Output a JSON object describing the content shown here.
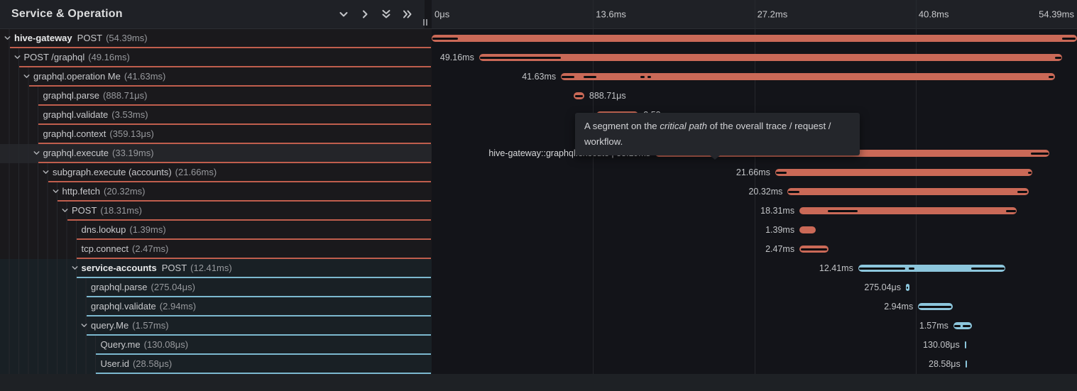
{
  "header": {
    "title": "Service & Operation",
    "icons": [
      "chevron-down",
      "chevron-right",
      "double-chevron-down",
      "double-chevron-right",
      "resize-grip"
    ]
  },
  "timeline": {
    "total_ms": 54.39,
    "ticks": [
      {
        "label": "0μs",
        "ms": 0,
        "align": "left"
      },
      {
        "label": "13.6ms",
        "ms": 13.6,
        "align": "left"
      },
      {
        "label": "27.2ms",
        "ms": 27.2,
        "align": "left"
      },
      {
        "label": "40.8ms",
        "ms": 40.8,
        "align": "left"
      },
      {
        "label": "54.39ms",
        "ms": 54.39,
        "align": "right"
      }
    ]
  },
  "colors": {
    "salmon": "#ca6957",
    "salmon_border": "#c05e4d",
    "blue": "#8cc6dc",
    "blue_border": "#7cb8cf",
    "critical": "#0c0d10",
    "salmon_row_bg": "#1a191c",
    "blue_row_bg": "#192025",
    "hover_row_bg": "#242529"
  },
  "tooltip": {
    "prefix": "A segment on the ",
    "italic": "critical path",
    "suffix": " of the overall trace / request / workflow."
  },
  "rows": [
    {
      "depth": 0,
      "chevron": true,
      "service": "hive-gateway",
      "name": "POST /graphql",
      "tree_name": "POST",
      "duration": "54.39ms",
      "color": "salmon",
      "hovered": false,
      "bar": {
        "start_ms": 0,
        "duration_ms": 54.39,
        "label": "",
        "label_side": "none"
      },
      "critical": [
        [
          0.05,
          2.2
        ],
        [
          53.15,
          54.3
        ]
      ]
    },
    {
      "depth": 1,
      "chevron": true,
      "service": "",
      "name": "POST /graphql",
      "tree_name": "POST /graphql",
      "duration": "49.16ms",
      "color": "salmon",
      "hovered": false,
      "bar": {
        "start_ms": 4.0,
        "duration_ms": 49.16,
        "label": "49.16ms",
        "label_side": "left"
      },
      "critical": [
        [
          4.05,
          10.9
        ],
        [
          52.55,
          53.1
        ]
      ]
    },
    {
      "depth": 2,
      "chevron": true,
      "service": "",
      "name": "graphql.operation Me",
      "tree_name": "graphql.operation Me",
      "duration": "41.63ms",
      "color": "salmon",
      "hovered": false,
      "bar": {
        "start_ms": 10.9,
        "duration_ms": 41.63,
        "label": "41.63ms",
        "label_side": "left"
      },
      "critical": [
        [
          10.95,
          12.05
        ],
        [
          12.8,
          13.9
        ],
        [
          17.6,
          17.95
        ],
        [
          18.2,
          18.5
        ],
        [
          52.0,
          52.4
        ]
      ]
    },
    {
      "depth": 3,
      "chevron": false,
      "service": "",
      "name": "graphql.parse",
      "tree_name": "graphql.parse",
      "duration": "888.71μs",
      "color": "salmon",
      "hovered": false,
      "bar": {
        "start_ms": 11.97,
        "duration_ms": 0.889,
        "label": "888.71μs",
        "label_side": "right"
      },
      "critical": [
        [
          12.1,
          12.75
        ]
      ]
    },
    {
      "depth": 3,
      "chevron": false,
      "service": "",
      "name": "graphql.validate",
      "tree_name": "graphql.validate",
      "duration": "3.53ms",
      "color": "salmon",
      "hovered": false,
      "bar": {
        "start_ms": 13.9,
        "duration_ms": 3.53,
        "label": "3.53ms",
        "label_side": "right"
      },
      "critical": [
        [
          14.2,
          17.3
        ]
      ]
    },
    {
      "depth": 3,
      "chevron": false,
      "service": "",
      "name": "graphql.context",
      "tree_name": "graphql.context",
      "duration": "359.13μs",
      "color": "salmon",
      "hovered": false,
      "bar": {
        "start_ms": 17.5,
        "duration_ms": 0.359,
        "label": "359.13μs",
        "label_side": "right"
      },
      "critical": []
    },
    {
      "depth": 3,
      "chevron": true,
      "service": "",
      "name": "graphql.execute",
      "tree_name": "graphql.execute",
      "duration": "33.19ms",
      "color": "salmon",
      "hovered": true,
      "bar": {
        "start_ms": 18.85,
        "duration_ms": 33.19,
        "label": "hive-gateway::graphql.execute | 33.19ms",
        "label_side": "left"
      },
      "critical": [
        [
          18.9,
          28.8
        ],
        [
          50.5,
          52.0
        ]
      ]
    },
    {
      "depth": 4,
      "chevron": true,
      "service": "",
      "name": "subgraph.execute (accounts)",
      "tree_name": "subgraph.execute (accounts)",
      "duration": "21.66ms",
      "color": "salmon",
      "hovered": false,
      "bar": {
        "start_ms": 28.95,
        "duration_ms": 21.66,
        "label": "21.66ms",
        "label_side": "left"
      },
      "critical": [
        [
          29.0,
          29.9
        ],
        [
          50.25,
          50.55
        ]
      ]
    },
    {
      "depth": 5,
      "chevron": true,
      "service": "",
      "name": "http.fetch",
      "tree_name": "http.fetch",
      "duration": "20.32ms",
      "color": "salmon",
      "hovered": false,
      "bar": {
        "start_ms": 30.0,
        "duration_ms": 20.32,
        "label": "20.32ms",
        "label_side": "left"
      },
      "critical": [
        [
          30.05,
          31.0
        ],
        [
          49.35,
          50.2
        ]
      ]
    },
    {
      "depth": 6,
      "chevron": true,
      "service": "",
      "name": "POST",
      "tree_name": "POST",
      "duration": "18.31ms",
      "color": "salmon",
      "hovered": false,
      "bar": {
        "start_ms": 31.0,
        "duration_ms": 18.31,
        "label": "18.31ms",
        "label_side": "left"
      },
      "critical": [
        [
          33.4,
          35.9
        ],
        [
          48.4,
          49.25
        ]
      ]
    },
    {
      "depth": 7,
      "chevron": false,
      "service": "",
      "name": "dns.lookup",
      "tree_name": "dns.lookup",
      "duration": "1.39ms",
      "color": "salmon",
      "hovered": false,
      "bar": {
        "start_ms": 31.0,
        "duration_ms": 1.39,
        "label": "1.39ms",
        "label_side": "left"
      },
      "critical": []
    },
    {
      "depth": 7,
      "chevron": false,
      "service": "",
      "name": "tcp.connect",
      "tree_name": "tcp.connect",
      "duration": "2.47ms",
      "color": "salmon",
      "hovered": false,
      "bar": {
        "start_ms": 31.0,
        "duration_ms": 2.47,
        "label": "2.47ms",
        "label_side": "left"
      },
      "critical": [
        [
          31.1,
          33.3
        ]
      ]
    },
    {
      "depth": 7,
      "chevron": true,
      "service": "service-accounts",
      "name": "POST",
      "tree_name": "POST",
      "duration": "12.41ms",
      "color": "blue",
      "hovered": false,
      "bar": {
        "start_ms": 35.95,
        "duration_ms": 12.41,
        "label": "12.41ms",
        "label_side": "left"
      },
      "critical": [
        [
          36.0,
          39.9
        ],
        [
          40.2,
          40.7
        ],
        [
          45.5,
          48.3
        ]
      ]
    },
    {
      "depth": 8,
      "chevron": false,
      "service": "",
      "name": "graphql.parse",
      "tree_name": "graphql.parse",
      "duration": "275.04μs",
      "color": "blue",
      "hovered": false,
      "bar": {
        "start_ms": 39.97,
        "duration_ms": 0.275,
        "label": "275.04μs",
        "label_side": "left"
      },
      "critical": [
        [
          40.02,
          40.16
        ]
      ]
    },
    {
      "depth": 8,
      "chevron": false,
      "service": "",
      "name": "graphql.validate",
      "tree_name": "graphql.validate",
      "duration": "2.94ms",
      "color": "blue",
      "hovered": false,
      "bar": {
        "start_ms": 41.0,
        "duration_ms": 2.94,
        "label": "2.94ms",
        "label_side": "left"
      },
      "critical": [
        [
          41.05,
          43.8
        ]
      ]
    },
    {
      "depth": 8,
      "chevron": true,
      "service": "",
      "name": "query.Me",
      "tree_name": "query.Me",
      "duration": "1.57ms",
      "color": "blue",
      "hovered": false,
      "bar": {
        "start_ms": 43.97,
        "duration_ms": 1.57,
        "label": "1.57ms",
        "label_side": "left"
      },
      "critical": [
        [
          44.02,
          44.6
        ],
        [
          44.75,
          45.4
        ]
      ]
    },
    {
      "depth": 9,
      "chevron": false,
      "service": "",
      "name": "Query.me",
      "tree_name": "Query.me",
      "duration": "130.08μs",
      "color": "blue",
      "hovered": false,
      "bar": {
        "start_ms": 44.92,
        "duration_ms": 0.13,
        "label": "130.08μs",
        "label_side": "left"
      },
      "critical": []
    },
    {
      "depth": 9,
      "chevron": false,
      "service": "",
      "name": "User.id",
      "tree_name": "User.id",
      "duration": "28.58μs",
      "color": "blue",
      "hovered": false,
      "bar": {
        "start_ms": 44.98,
        "duration_ms": 0.0286,
        "label": "28.58μs",
        "label_side": "left"
      },
      "critical": []
    }
  ]
}
